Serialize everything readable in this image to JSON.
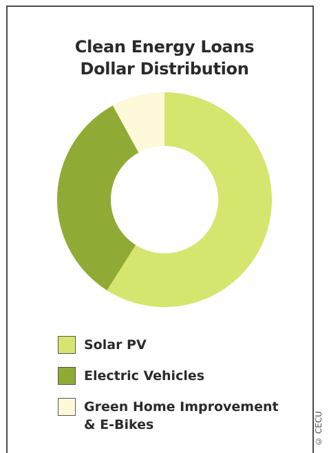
{
  "chart_data": {
    "type": "pie",
    "title": "Clean Energy Loans Dollar Distribution",
    "title_lines": [
      "Clean Energy Loans",
      "Dollar Distribution"
    ],
    "style": "donut",
    "series": [
      {
        "name": "Solar PV",
        "value": 59,
        "color": "#d6e56e"
      },
      {
        "name": "Electric Vehicles",
        "value": 33,
        "color": "#90ab35"
      },
      {
        "name": "Green Home Improvement & E-Bikes",
        "value": 8,
        "color": "#fdf9d9"
      }
    ],
    "legend": {
      "placement": "bottom",
      "items": [
        {
          "label_lines": [
            "Solar PV"
          ]
        },
        {
          "label_lines": [
            "Electric Vehicles"
          ]
        },
        {
          "label_lines": [
            "Green Home Improvement",
            "& E-Bikes"
          ]
        }
      ]
    }
  },
  "copyright": "© CECU"
}
